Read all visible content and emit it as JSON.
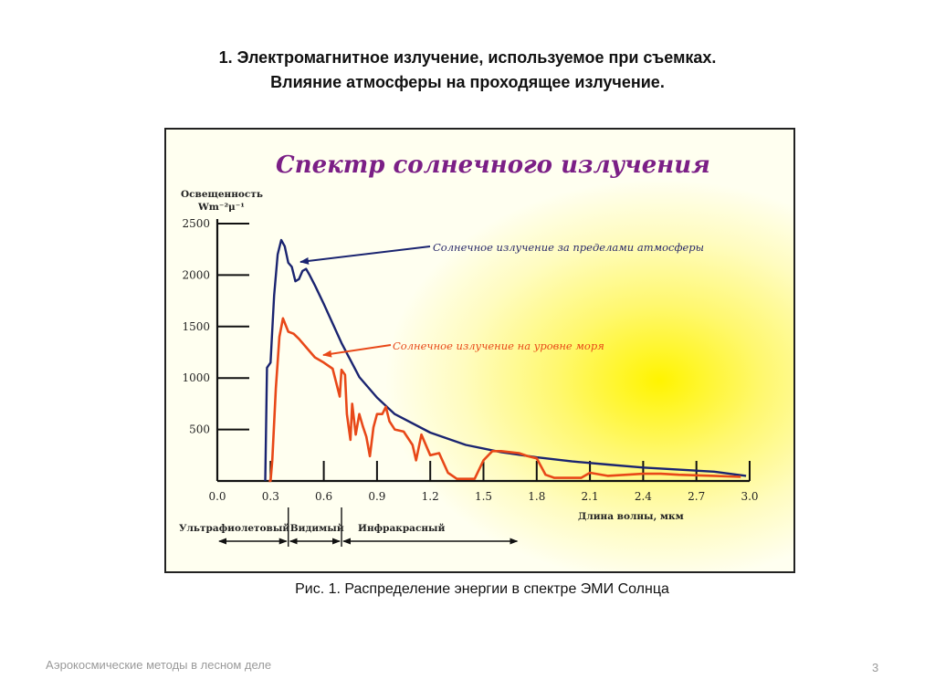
{
  "slide": {
    "title_line1": "1. Электромагнитное излучение, используемое при съемках.",
    "title_line2": "Влияние атмосферы на проходящее излучение.",
    "caption": "Рис. 1. Распределение энергии в спектре ЭМИ Солнца",
    "footer": "Аэрокосмические методы в лесном деле",
    "page_number": "3"
  },
  "chart_data": {
    "type": "line",
    "title": "Спектр солнечного излучения",
    "ylabel_line1": "Освещенность",
    "ylabel_line2": "Wm⁻²μ⁻¹",
    "xlabel": "Длина волны, мкм",
    "xlim": [
      0.0,
      3.0
    ],
    "ylim": [
      0,
      2500
    ],
    "x_ticks": [
      "0.0",
      "0.3",
      "0.6",
      "0.9",
      "1.2",
      "1.5",
      "1.8",
      "2.1",
      "2.4",
      "2.7",
      "3.0"
    ],
    "x_tick_values": [
      0.0,
      0.3,
      0.6,
      0.9,
      1.2,
      1.5,
      1.8,
      2.1,
      2.4,
      2.7,
      3.0
    ],
    "y_ticks": [
      "2500",
      "2000",
      "1500",
      "1000",
      "500"
    ],
    "y_tick_values": [
      2500,
      2000,
      1500,
      1000,
      500
    ],
    "series": [
      {
        "name": "Солнечное излучение за пределами атмосферы",
        "color": "#1a2470",
        "x": [
          0.27,
          0.28,
          0.3,
          0.32,
          0.34,
          0.36,
          0.38,
          0.4,
          0.42,
          0.44,
          0.46,
          0.48,
          0.5,
          0.52,
          0.55,
          0.6,
          0.65,
          0.7,
          0.8,
          0.9,
          1.0,
          1.2,
          1.4,
          1.6,
          1.8,
          2.0,
          2.2,
          2.4,
          2.6,
          2.8,
          2.98
        ],
        "y": [
          0,
          1100,
          1150,
          1800,
          2200,
          2340,
          2280,
          2120,
          2080,
          1940,
          1960,
          2040,
          2060,
          2000,
          1900,
          1720,
          1530,
          1340,
          1010,
          810,
          650,
          470,
          350,
          280,
          230,
          190,
          160,
          130,
          110,
          90,
          50
        ]
      },
      {
        "name": "Солнечное излучение на уровне моря",
        "color": "#e84818",
        "x": [
          0.29,
          0.3,
          0.31,
          0.33,
          0.35,
          0.37,
          0.4,
          0.43,
          0.46,
          0.5,
          0.55,
          0.6,
          0.65,
          0.69,
          0.7,
          0.72,
          0.73,
          0.75,
          0.76,
          0.78,
          0.8,
          0.82,
          0.84,
          0.86,
          0.88,
          0.9,
          0.93,
          0.95,
          0.97,
          1.0,
          1.05,
          1.1,
          1.12,
          1.15,
          1.2,
          1.25,
          1.3,
          1.35,
          1.4,
          1.45,
          1.5,
          1.55,
          1.6,
          1.65,
          1.7,
          1.75,
          1.8,
          1.85,
          1.9,
          2.0,
          2.05,
          2.1,
          2.2,
          2.4,
          2.5,
          2.6,
          2.8,
          2.95
        ],
        "y": [
          0,
          0,
          200,
          900,
          1400,
          1580,
          1450,
          1430,
          1380,
          1300,
          1200,
          1150,
          1090,
          820,
          1080,
          1030,
          650,
          400,
          750,
          450,
          650,
          530,
          430,
          240,
          520,
          650,
          650,
          720,
          580,
          500,
          480,
          350,
          200,
          450,
          250,
          270,
          80,
          20,
          20,
          20,
          200,
          290,
          290,
          280,
          270,
          240,
          220,
          60,
          30,
          30,
          30,
          80,
          50,
          70,
          70,
          60,
          50,
          40
        ]
      }
    ],
    "annotations": [
      "Солнечное излучение за пределами атмосферы",
      "Солнечное излучение на уровне моря"
    ],
    "band_labels": [
      "Ультрафиолетовый",
      "Видимый",
      "Инфракрасный"
    ],
    "band_ranges": [
      [
        0.0,
        0.4
      ],
      [
        0.4,
        0.7
      ],
      [
        0.7,
        1.7
      ]
    ]
  }
}
